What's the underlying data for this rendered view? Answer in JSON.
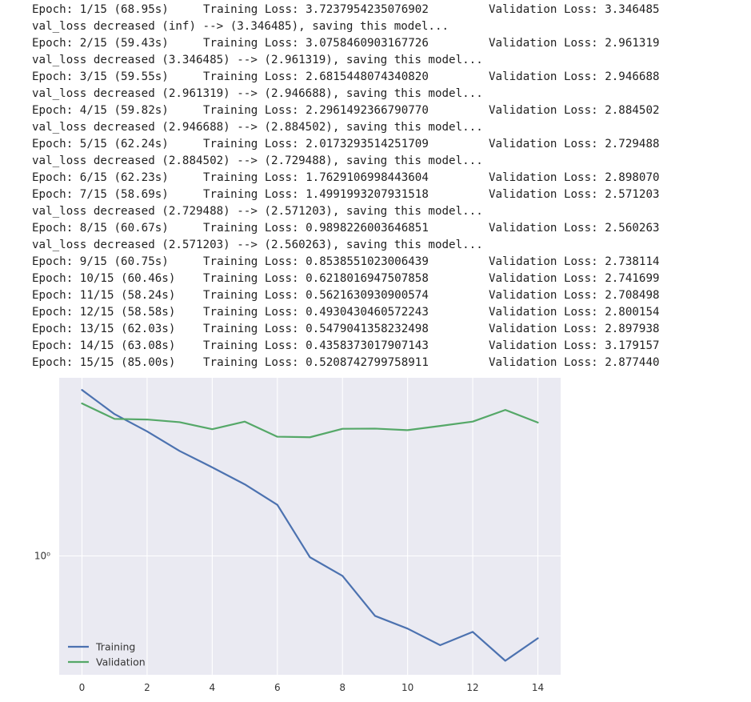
{
  "log_lines": [
    {
      "type": "epoch",
      "epoch": "Epoch: 1/15 (68.95s)",
      "train": "Training Loss: 3.7237954235076902",
      "val": "Validation Loss: 3.346485"
    },
    {
      "type": "msg",
      "text": "val_loss decreased (inf) --> (3.346485), saving this model..."
    },
    {
      "type": "epoch",
      "epoch": "Epoch: 2/15 (59.43s)",
      "train": "Training Loss: 3.0758460903167726",
      "val": "Validation Loss: 2.961319"
    },
    {
      "type": "msg",
      "text": "val_loss decreased (3.346485) --> (2.961319), saving this model..."
    },
    {
      "type": "epoch",
      "epoch": "Epoch: 3/15 (59.55s)",
      "train": "Training Loss: 2.6815448074340820",
      "val": "Validation Loss: 2.946688"
    },
    {
      "type": "msg",
      "text": "val_loss decreased (2.961319) --> (2.946688), saving this model..."
    },
    {
      "type": "epoch",
      "epoch": "Epoch: 4/15 (59.82s)",
      "train": "Training Loss: 2.2961492366790770",
      "val": "Validation Loss: 2.884502"
    },
    {
      "type": "msg",
      "text": "val_loss decreased (2.946688) --> (2.884502), saving this model..."
    },
    {
      "type": "epoch",
      "epoch": "Epoch: 5/15 (62.24s)",
      "train": "Training Loss: 2.0173293514251709",
      "val": "Validation Loss: 2.729488"
    },
    {
      "type": "msg",
      "text": "val_loss decreased (2.884502) --> (2.729488), saving this model..."
    },
    {
      "type": "epoch",
      "epoch": "Epoch: 6/15 (62.23s)",
      "train": "Training Loss: 1.7629106998443604",
      "val": "Validation Loss: 2.898070"
    },
    {
      "type": "epoch",
      "epoch": "Epoch: 7/15 (58.69s)",
      "train": "Training Loss: 1.4991993207931518",
      "val": "Validation Loss: 2.571203"
    },
    {
      "type": "msg",
      "text": "val_loss decreased (2.729488) --> (2.571203), saving this model..."
    },
    {
      "type": "epoch",
      "epoch": "Epoch: 8/15 (60.67s)",
      "train": "Training Loss: 0.9898226003646851",
      "val": "Validation Loss: 2.560263"
    },
    {
      "type": "msg",
      "text": "val_loss decreased (2.571203) --> (2.560263), saving this model..."
    },
    {
      "type": "epoch",
      "epoch": "Epoch: 9/15 (60.75s)",
      "train": "Training Loss: 0.8538551023006439",
      "val": "Validation Loss: 2.738114"
    },
    {
      "type": "epoch",
      "epoch": "Epoch: 10/15 (60.46s)",
      "train": "Training Loss: 0.6218016947507858",
      "val": "Validation Loss: 2.741699"
    },
    {
      "type": "epoch",
      "epoch": "Epoch: 11/15 (58.24s)",
      "train": "Training Loss: 0.5621630930900574",
      "val": "Validation Loss: 2.708498"
    },
    {
      "type": "epoch",
      "epoch": "Epoch: 12/15 (58.58s)",
      "train": "Training Loss: 0.4930430460572243",
      "val": "Validation Loss: 2.800154"
    },
    {
      "type": "epoch",
      "epoch": "Epoch: 13/15 (62.03s)",
      "train": "Training Loss: 0.5479041358232498",
      "val": "Validation Loss: 2.897938"
    },
    {
      "type": "epoch",
      "epoch": "Epoch: 14/15 (63.08s)",
      "train": "Training Loss: 0.4358373017907143",
      "val": "Validation Loss: 3.179157"
    },
    {
      "type": "epoch",
      "epoch": "Epoch: 15/15 (85.00s)",
      "train": "Training Loss: 0.5208742799758911",
      "val": "Validation Loss: 2.877440"
    }
  ],
  "chart_data": {
    "type": "line",
    "title": "",
    "xlabel": "",
    "ylabel": "",
    "yscale": "log",
    "x": [
      0,
      1,
      2,
      3,
      4,
      5,
      6,
      7,
      8,
      9,
      10,
      11,
      12,
      13,
      14
    ],
    "xlim": [
      -0.7,
      14.7
    ],
    "ylim": [
      0.39,
      4.1
    ],
    "xticks": [
      0,
      2,
      4,
      6,
      8,
      10,
      12,
      14
    ],
    "yticks": [
      {
        "value": 1,
        "label": "10⁰"
      }
    ],
    "grid": true,
    "legend_placement": "lower-left",
    "background": "#eaeaf2",
    "series": [
      {
        "name": "Training",
        "color": "#4c72b0",
        "values": [
          3.7238,
          3.0758,
          2.6815,
          2.2961,
          2.0173,
          1.7629,
          1.4992,
          0.9898,
          0.8539,
          0.6218,
          0.5622,
          0.493,
          0.5479,
          0.4358,
          0.5209
        ]
      },
      {
        "name": "Validation",
        "color": "#55a868",
        "values": [
          3.3465,
          2.9613,
          2.9467,
          2.8845,
          2.7295,
          2.8981,
          2.5712,
          2.5603,
          2.7381,
          2.7417,
          2.7085,
          2.8002,
          2.8979,
          3.1792,
          2.8774
        ]
      }
    ]
  }
}
